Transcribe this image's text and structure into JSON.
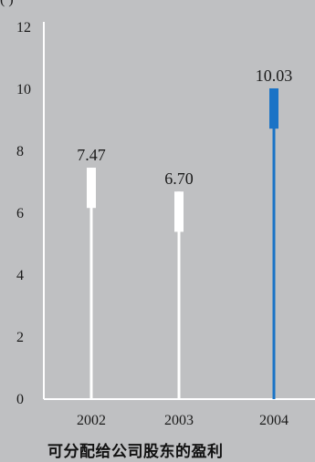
{
  "chart_data": {
    "type": "bar",
    "title": "可分配给公司股东的盈利",
    "top_fragment": "(  )",
    "categories": [
      "2002",
      "2003",
      "2004"
    ],
    "values": [
      7.47,
      6.7,
      10.03
    ],
    "value_labels": [
      "7.47",
      "6.70",
      "10.03"
    ],
    "highlight_index": 2,
    "ylim": [
      0,
      12
    ],
    "yticks": [
      0,
      2,
      4,
      6,
      8,
      10,
      12
    ],
    "grid": false,
    "colors": {
      "background": "#bfc0c2",
      "bar": "#ffffff",
      "highlight": "#1a73c6",
      "axis": "#ffffff"
    }
  }
}
